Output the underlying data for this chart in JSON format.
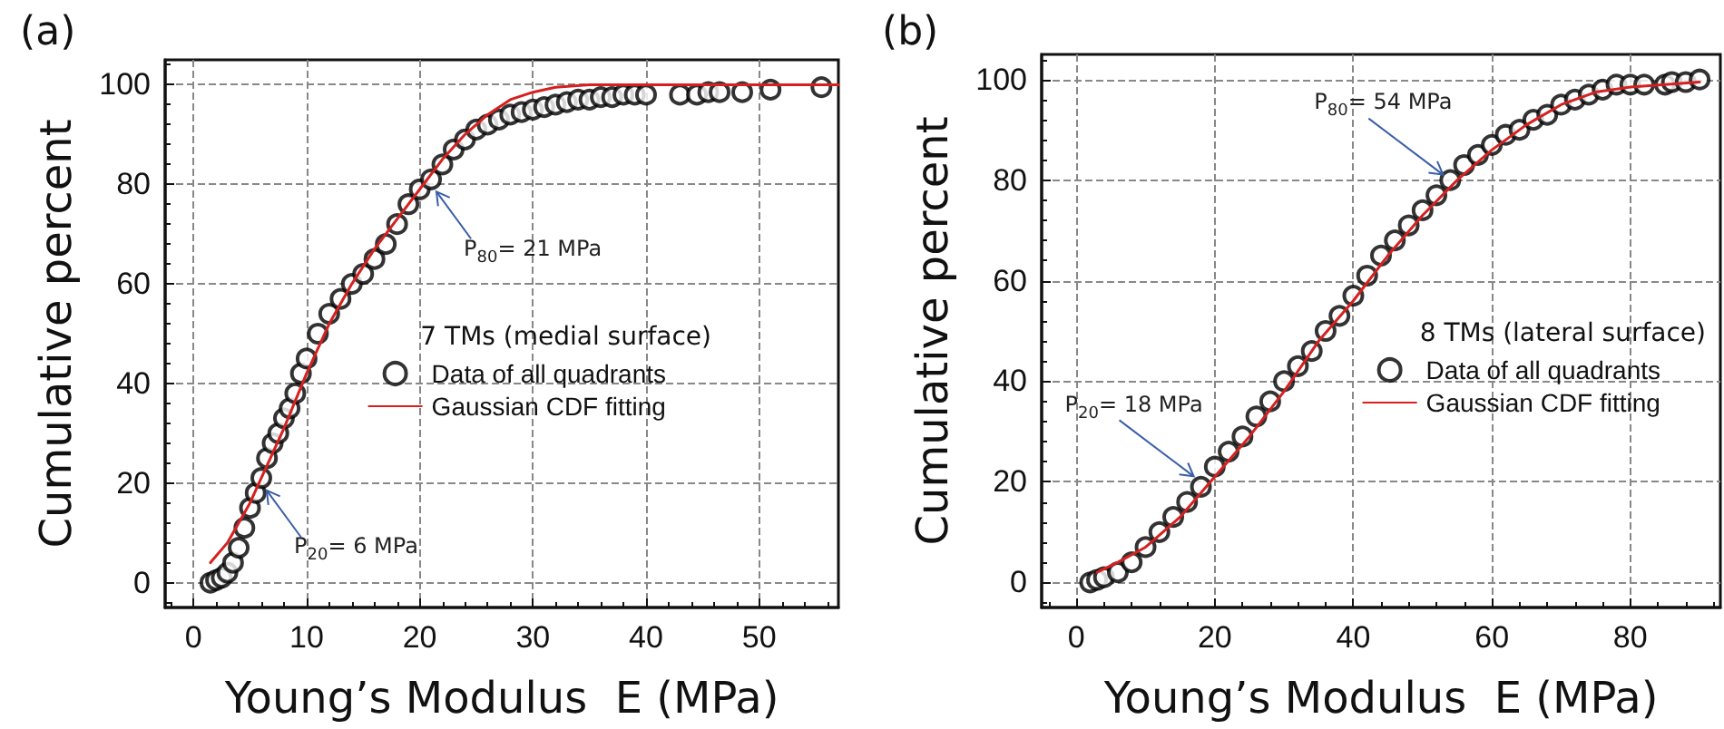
{
  "chart_data": [
    {
      "type": "scatter",
      "title": "(a)",
      "xlabel": "Young’s Modulus  E (MPa)",
      "ylabel": "Cumulative percent",
      "legend_title": "7 TMs (medial surface)",
      "legend": "bottom right",
      "grid": true,
      "marker": "circle",
      "xlim": [
        -2.5,
        57
      ],
      "xticks": [
        0,
        10,
        20,
        30,
        40,
        50
      ],
      "ylim": [
        -5,
        105
      ],
      "yticks": [
        0,
        20,
        40,
        60,
        80,
        100
      ],
      "series": [
        {
          "name": "Data of all quadrants",
          "type": "scatter",
          "color": "#000000",
          "x": [
            1.5,
            2,
            2.5,
            3,
            3.5,
            4,
            4.5,
            5,
            5.5,
            6,
            6.5,
            7,
            7.5,
            8,
            8.5,
            9,
            9.5,
            10,
            11,
            12,
            13,
            14,
            15,
            16,
            17,
            18,
            19,
            20,
            21,
            22,
            23,
            24,
            25,
            26,
            27,
            28,
            29,
            30,
            31,
            32,
            33,
            34,
            35,
            36,
            37,
            38,
            39,
            40,
            43,
            44.5,
            45.5,
            46.5,
            48.5,
            51,
            55.5
          ],
          "values": [
            0,
            0.5,
            1,
            2,
            4,
            7,
            11,
            15,
            18,
            21,
            25,
            28,
            30,
            33,
            35,
            38,
            42,
            45,
            50,
            54,
            57,
            60,
            62,
            65,
            68,
            72,
            76,
            79,
            81,
            84,
            87,
            89,
            91,
            92,
            93,
            94,
            94.5,
            95,
            95.5,
            96,
            96.5,
            97,
            97,
            97.5,
            97.5,
            98,
            98,
            98,
            98,
            98,
            98.5,
            98.5,
            98.5,
            99,
            99.5
          ]
        },
        {
          "name": "Gaussian CDF fitting",
          "type": "line",
          "marker": "none",
          "line_style": "solid",
          "color": "#d62020",
          "x": [
            1.5,
            3,
            4,
            5,
            6,
            8,
            10,
            12,
            14,
            16,
            18,
            20,
            22,
            24,
            26,
            28,
            30,
            32,
            35,
            40,
            50,
            57
          ],
          "values": [
            4,
            8,
            12,
            16,
            21,
            31,
            42,
            52,
            60,
            67,
            73,
            79,
            85,
            90,
            94,
            97,
            98.5,
            99.5,
            100,
            100,
            100,
            100
          ]
        }
      ],
      "annotations": [
        {
          "text": "P$_{20}$= 6 MPa",
          "x": 6,
          "y": 20
        },
        {
          "text": "P$_{80}$= 21 MPa",
          "x": 21,
          "y": 80
        }
      ]
    },
    {
      "type": "scatter",
      "title": "(b)",
      "xlabel": "Young’s Modulus  E (MPa)",
      "ylabel": "Cumulative percent",
      "legend_title": "8 TMs (lateral surface)",
      "legend": "bottom right",
      "grid": true,
      "marker": "circle",
      "xlim": [
        -5,
        93
      ],
      "xticks": [
        0,
        20,
        40,
        60,
        80
      ],
      "ylim": [
        -5,
        105
      ],
      "yticks": [
        0,
        20,
        40,
        60,
        80,
        100
      ],
      "series": [
        {
          "name": "Data of all quadrants",
          "type": "scatter",
          "color": "#000000",
          "x": [
            2,
            3,
            4,
            6,
            8,
            10,
            12,
            14,
            16,
            18,
            20,
            22,
            24,
            26,
            28,
            30,
            32,
            34,
            36,
            38,
            40,
            42,
            44,
            46,
            48,
            50,
            52,
            54,
            56,
            58,
            60,
            62,
            64,
            66,
            68,
            70,
            72,
            74,
            76,
            78,
            80,
            82,
            85,
            86,
            88,
            90
          ],
          "values": [
            0,
            0.5,
            1,
            2,
            4,
            7,
            10,
            13,
            16,
            19,
            23,
            26,
            29,
            33,
            36,
            40,
            43,
            46,
            50,
            53,
            57,
            61,
            65,
            68,
            71,
            74,
            77,
            80,
            83,
            85,
            87,
            89,
            90,
            92,
            93,
            95,
            96,
            97,
            98,
            99,
            99,
            99,
            99,
            99.5,
            99.5,
            100
          ]
        },
        {
          "name": "Gaussian CDF fitting",
          "type": "line",
          "marker": "none",
          "line_style": "solid",
          "color": "#d62020",
          "x": [
            3,
            6,
            10,
            15,
            20,
            25,
            30,
            35,
            40,
            45,
            50,
            55,
            60,
            65,
            70,
            75,
            80,
            85,
            90
          ],
          "values": [
            2,
            4,
            7,
            13,
            21,
            29,
            38,
            48,
            56,
            65,
            73,
            80,
            86,
            91,
            95,
            97.5,
            98.5,
            99,
            99.5
          ]
        }
      ],
      "annotations": [
        {
          "text": "P$_{20}$= 18 MPa",
          "x": 18,
          "y": 20
        },
        {
          "text": "P$_{80}$= 54 MPa",
          "x": 54,
          "y": 80
        }
      ]
    }
  ]
}
